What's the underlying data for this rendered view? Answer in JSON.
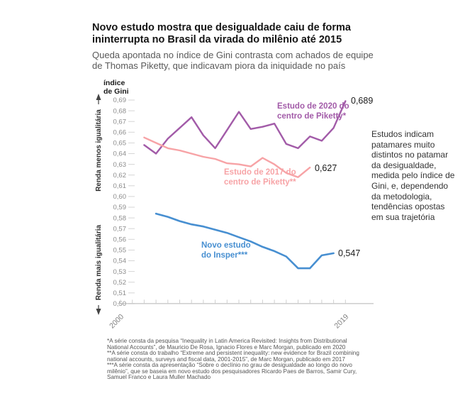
{
  "header": {
    "title_lines": [
      "Novo estudo mostra que desigualdade caiu de forma",
      "ininterrupta no Brasil da virada do milênio até 2015"
    ],
    "subtitle_lines": [
      "Queda apontada no índice de Gini contrasta com achados de equipe",
      "de Thomas Piketty, que indicavam piora da iniquidade no país"
    ]
  },
  "chart_data": {
    "type": "line",
    "title": "Novo estudo mostra que desigualdade caiu de forma ininterrupta no Brasil da virada do milênio até 2015",
    "ylabel_lines": [
      "índice",
      "de Gini"
    ],
    "y_axis": {
      "min": 0.5,
      "max": 0.69,
      "tick_step": 0.01,
      "decimal_separator": ","
    },
    "x_axis": {
      "min": 2000,
      "max": 2019,
      "labeled_ticks": [
        "2000",
        "2019"
      ]
    },
    "left_annotations": [
      {
        "text": "Renda menos igualitária",
        "arrow": "up"
      },
      {
        "text": "Renda mais igualitária",
        "arrow": "down"
      }
    ],
    "series": [
      {
        "name": "Estudo de 2020 do centro de Piketty*",
        "label_lines": [
          "Estudo de 2020 do",
          "centro de Piketty*"
        ],
        "color": "#a25ba8",
        "end_label": "0,689",
        "start_year": 2002,
        "values": [
          0.648,
          0.64,
          0.654,
          0.664,
          0.674,
          0.657,
          0.645,
          0.662,
          0.679,
          0.663,
          0.665,
          0.668,
          0.649,
          0.645,
          0.656,
          0.652,
          0.664,
          0.689
        ]
      },
      {
        "name": "Estudo de 2017 do centro de Piketty**",
        "label_lines": [
          "Estudo de 2017 do",
          "centro de Piketty**"
        ],
        "color": "#f7a3a6",
        "end_label": "0,627",
        "start_year": 2002,
        "values": [
          0.655,
          0.65,
          0.645,
          0.643,
          0.64,
          0.637,
          0.635,
          0.631,
          0.63,
          0.628,
          0.636,
          0.63,
          0.622,
          0.618,
          0.627
        ]
      },
      {
        "name": "Novo estudo do Insper***",
        "label_lines": [
          "Novo estudo",
          "do Insper***"
        ],
        "color": "#478fd1",
        "end_label": "0,547",
        "start_year": 2003,
        "values": [
          0.584,
          0.581,
          0.577,
          0.574,
          0.572,
          0.569,
          0.566,
          0.562,
          0.558,
          0.553,
          0.549,
          0.544,
          0.533,
          0.533,
          0.545,
          0.547
        ]
      }
    ]
  },
  "aside": {
    "lines": [
      "Estudos indicam",
      "patamares muito",
      "distintos no patamar",
      "da desigualdade,",
      "medida pelo índice de",
      "Gini, e, dependendo",
      "da metodologia,",
      "tendências opostas",
      "em sua trajetória"
    ]
  },
  "footnotes": {
    "lines": [
      "*A série consta da pesquisa “Inequality in Latin America Revisited: Insights from Distributional",
      "National Accounts”, de Mauricio De Rosa, Ignacio Flores e Marc Morgan, publicado em 2020",
      "**A série consta do trabalho “Extreme and persistent inequality: new evidence for Brazil combining",
      "national accounts, surveys and fiscal data, 2001-2015”, de Marc Morgan, publicado em 2017",
      "***A série consta da apresentação “Sobre o declínio no grau de desigualdade ao longo do novo",
      "milênio”, que se baseia em novo estudo dos pesquisadores Ricardo Paes de Barros, Samir Cury,",
      "Samuel Franco e Laura Muller Machado"
    ]
  }
}
